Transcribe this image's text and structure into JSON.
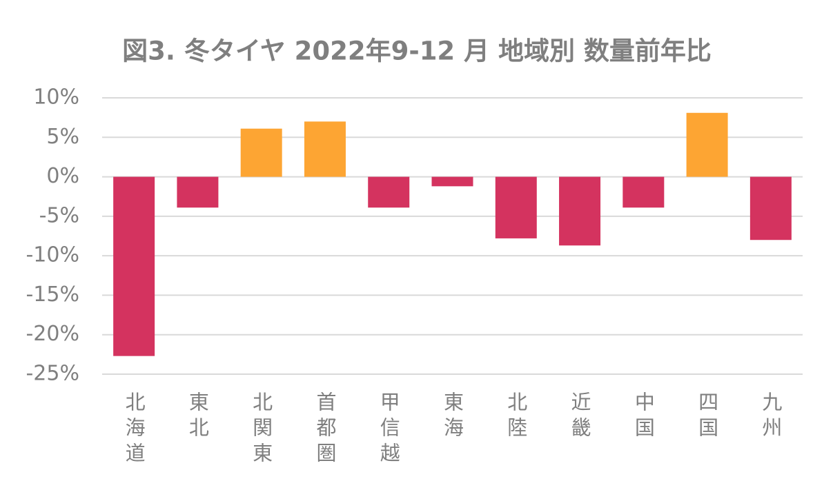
{
  "chart_data": {
    "type": "bar",
    "title": "図3. 冬タイヤ 2022年9-12 月 地域別 数量前年比",
    "categories": [
      "北海道",
      "東北",
      "北関東",
      "首都圏",
      "甲信越",
      "東海",
      "北陸",
      "近畿",
      "中国",
      "四国",
      "九州"
    ],
    "values": [
      -22.7,
      -3.9,
      6.1,
      7.0,
      -3.9,
      -1.2,
      -7.8,
      -8.7,
      -3.9,
      8.1,
      -8.0
    ],
    "colors": [
      "#d4335f",
      "#d4335f",
      "#fda533",
      "#fda533",
      "#d4335f",
      "#d4335f",
      "#d4335f",
      "#d4335f",
      "#d4335f",
      "#fda533",
      "#d4335f"
    ],
    "ylim": [
      -25,
      10
    ],
    "yticks": [
      {
        "value": -25,
        "label": "-25%"
      },
      {
        "value": -20,
        "label": "-20%"
      },
      {
        "value": -15,
        "label": "-15%"
      },
      {
        "value": -10,
        "label": "-10%"
      },
      {
        "value": -5,
        "label": "-5%"
      },
      {
        "value": 0,
        "label": "0%"
      },
      {
        "value": 5,
        "label": "5%"
      },
      {
        "value": 10,
        "label": "10%"
      }
    ],
    "grid": true
  }
}
